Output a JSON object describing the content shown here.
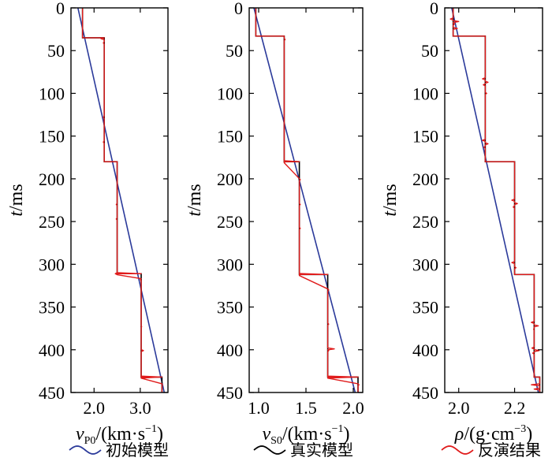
{
  "chart_data": {
    "type": "line",
    "y_axis": {
      "label_italic": "t",
      "label_rest": "/ms",
      "range": [
        0,
        450
      ],
      "ticks": [
        0,
        50,
        100,
        150,
        200,
        250,
        300,
        350,
        400,
        450
      ],
      "inverted": true
    },
    "colors": {
      "initial": "#2b3a9a",
      "true": "#000000",
      "inversion": "#e01b1b"
    },
    "panels": [
      {
        "id": "vp",
        "xlabel_var": "v",
        "xlabel_sub": "P0",
        "xlabel_unit": "/(km·s",
        "xlabel_exp": "−1",
        "xlabel_close": ")",
        "xrange": [
          1.5,
          3.6
        ],
        "xticks": [
          {
            "v": 2.0,
            "label": "2.0"
          },
          {
            "v": 3.0,
            "label": "3.0"
          }
        ],
        "initial": [
          [
            1.65,
            0
          ],
          [
            3.52,
            450
          ]
        ],
        "true_steps": [
          [
            0,
            35,
            1.75
          ],
          [
            35,
            180,
            2.22
          ],
          [
            180,
            311,
            2.5
          ],
          [
            311,
            432,
            3.02
          ],
          [
            432,
            450,
            3.47
          ]
        ],
        "spikes": [
          [
            36,
            2.15
          ],
          [
            41,
            2.2
          ],
          [
            128,
            2.2
          ],
          [
            154,
            2.22
          ],
          [
            157,
            2.2
          ],
          [
            201,
            2.5
          ],
          [
            230,
            2.48
          ],
          [
            247,
            2.48
          ],
          [
            263,
            2.5
          ],
          [
            311,
            2.46
          ],
          [
            318,
            3.0
          ],
          [
            373,
            3.03
          ],
          [
            399,
            3.02
          ],
          [
            401,
            3.07
          ],
          [
            432,
            3.42
          ],
          [
            441,
            3.48
          ]
        ]
      },
      {
        "id": "vs",
        "xlabel_var": "v",
        "xlabel_sub": "S0",
        "xlabel_unit": "/(km·s",
        "xlabel_exp": "−1",
        "xlabel_close": ")",
        "xrange": [
          0.9,
          2.1
        ],
        "xticks": [
          {
            "v": 1.0,
            "label": "1.0"
          },
          {
            "v": 1.5,
            "label": "1.5"
          },
          {
            "v": 2.0,
            "label": "2.0"
          }
        ],
        "initial": [
          [
            0.95,
            0
          ],
          [
            2.02,
            450
          ]
        ],
        "true_steps": [
          [
            0,
            33,
            0.97
          ],
          [
            33,
            180,
            1.27
          ],
          [
            180,
            312,
            1.43
          ],
          [
            312,
            432,
            1.73
          ],
          [
            432,
            450,
            2.05
          ]
        ],
        "spikes": [
          [
            28,
            0.97
          ],
          [
            37,
            1.28
          ],
          [
            180,
            1.28
          ],
          [
            201,
            1.44
          ],
          [
            230,
            1.44
          ],
          [
            258,
            1.44
          ],
          [
            312,
            1.44
          ],
          [
            330,
            1.74
          ],
          [
            370,
            1.74
          ],
          [
            399,
            1.8
          ],
          [
            401,
            1.74
          ],
          [
            432,
            2.02
          ],
          [
            441,
            2.06
          ]
        ]
      },
      {
        "id": "rho",
        "xlabel_var": "ρ",
        "xlabel_sub": "",
        "xlabel_unit": "/(g·cm",
        "xlabel_exp": "−3",
        "xlabel_close": ")",
        "xrange": [
          1.95,
          2.3
        ],
        "xticks": [
          {
            "v": 2.0,
            "label": "2.0"
          },
          {
            "v": 2.2,
            "label": "2.2"
          }
        ],
        "initial": [
          [
            1.975,
            0
          ],
          [
            2.285,
            450
          ]
        ],
        "true_steps": [
          [
            0,
            33,
            1.98
          ],
          [
            33,
            180,
            2.095
          ],
          [
            180,
            312,
            2.2
          ],
          [
            312,
            432,
            2.27
          ],
          [
            432,
            450,
            2.29
          ]
        ],
        "spikes": [
          [
            13,
            1.97
          ],
          [
            16,
            2.0
          ],
          [
            19,
            1.985
          ],
          [
            24,
            1.995
          ],
          [
            83,
            2.085
          ],
          [
            87,
            2.105
          ],
          [
            90,
            2.088
          ],
          [
            100,
            2.1
          ],
          [
            155,
            2.085
          ],
          [
            159,
            2.105
          ],
          [
            163,
            2.09
          ],
          [
            225,
            2.19
          ],
          [
            229,
            2.21
          ],
          [
            233,
            2.195
          ],
          [
            298,
            2.19
          ],
          [
            304,
            2.205
          ],
          [
            368,
            2.26
          ],
          [
            372,
            2.285
          ],
          [
            376,
            2.268
          ],
          [
            398,
            2.262
          ],
          [
            401,
            2.288
          ],
          [
            404,
            2.265
          ],
          [
            441,
            2.26
          ],
          [
            444,
            2.29
          ],
          [
            446,
            2.27
          ]
        ]
      }
    ],
    "legend": [
      {
        "key": "initial",
        "label": "初始模型"
      },
      {
        "key": "true",
        "label": "真实模型"
      },
      {
        "key": "inversion",
        "label": "反演结果"
      }
    ]
  }
}
